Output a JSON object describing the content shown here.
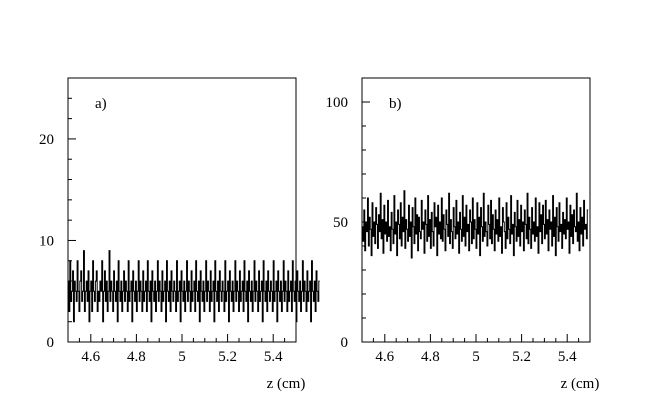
{
  "chart_data": [
    {
      "type": "line",
      "step": true,
      "panel_label": "a)",
      "xlabel": "z (cm)",
      "ylabel": "",
      "xlim": [
        4.5,
        5.5
      ],
      "ylim": [
        0,
        26
      ],
      "xticks": [
        4.6,
        4.8,
        5,
        5.2,
        5.4
      ],
      "xtick_labels": [
        "4.6",
        "4.8",
        "5",
        "5.2",
        "5.4"
      ],
      "yticks": [
        0,
        10,
        20
      ],
      "ytick_labels": [
        "0",
        "10",
        "20"
      ],
      "grid": false,
      "series": [
        {
          "x_start": 4.5,
          "x_step": 0.004,
          "values": [
            6,
            3,
            8,
            4,
            5,
            7,
            2,
            6,
            5,
            4,
            8,
            5,
            3,
            6,
            7,
            4,
            5,
            9,
            3,
            5,
            6,
            4,
            7,
            2,
            5,
            6,
            3,
            8,
            5,
            4,
            6,
            7,
            3,
            5,
            4,
            6,
            5,
            8,
            2,
            5,
            7,
            4,
            6,
            3,
            5,
            9,
            4,
            6,
            5,
            3,
            7,
            5,
            4,
            6,
            2,
            8,
            5,
            4,
            6,
            3,
            5,
            7,
            4,
            6,
            5,
            3,
            8,
            4,
            5,
            6,
            2,
            7,
            5,
            4,
            6,
            3,
            5,
            8,
            4,
            6,
            5,
            3,
            7,
            4,
            5,
            6,
            3,
            8,
            5,
            4,
            6,
            2,
            7,
            5,
            4,
            6,
            3,
            5,
            8,
            4,
            6,
            5,
            3,
            7,
            4,
            5,
            6,
            2,
            8,
            5,
            4,
            6,
            3,
            7,
            5,
            4,
            6,
            5,
            3,
            8,
            4,
            5,
            6,
            2,
            7,
            5,
            4,
            6,
            3,
            5,
            8,
            4,
            6,
            5,
            3,
            7,
            4,
            5,
            6,
            3,
            8,
            5,
            4,
            6,
            2,
            7,
            5,
            4,
            6,
            3,
            5,
            8,
            4,
            6,
            5,
            3,
            7,
            4,
            5,
            6,
            2,
            8,
            5,
            4,
            6,
            3,
            7,
            5,
            4,
            6,
            5,
            3,
            8,
            4,
            5,
            6,
            2,
            7,
            5,
            4,
            6,
            3,
            5,
            8,
            4,
            6,
            5,
            3,
            7,
            4,
            5,
            6,
            3,
            8,
            5,
            4,
            6,
            2,
            7,
            5,
            4,
            6,
            3,
            5,
            8,
            4,
            6,
            5,
            3,
            7,
            4,
            5,
            6,
            2,
            8,
            5,
            4,
            6,
            3,
            7,
            5,
            4,
            6,
            5,
            3,
            8,
            4,
            5,
            6,
            2,
            7,
            5,
            4,
            6,
            3,
            5,
            8,
            4,
            6,
            5,
            3,
            7,
            4,
            5,
            6,
            3,
            8,
            5,
            4,
            6,
            2,
            7,
            5,
            4,
            6,
            3,
            5,
            8,
            4,
            6,
            5,
            3,
            7,
            4,
            5,
            6,
            2,
            8,
            5,
            4,
            6,
            3,
            7,
            5,
            4,
            6
          ]
        }
      ]
    },
    {
      "type": "line",
      "step": true,
      "panel_label": "b)",
      "xlabel": "z (cm)",
      "ylabel": "",
      "xlim": [
        4.5,
        5.5
      ],
      "ylim": [
        0,
        110
      ],
      "xticks": [
        4.6,
        4.8,
        5,
        5.2,
        5.4
      ],
      "xtick_labels": [
        "4.6",
        "4.8",
        "5",
        "5.2",
        "5.4"
      ],
      "yticks": [
        0,
        50,
        100
      ],
      "ytick_labels": [
        "0",
        "50",
        "100"
      ],
      "grid": false,
      "series": [
        {
          "x_start": 4.5,
          "x_step": 0.004,
          "values": [
            48,
            42,
            55,
            38,
            50,
            46,
            60,
            40,
            52,
            47,
            36,
            58,
            44,
            50,
            41,
            56,
            49,
            39,
            53,
            46,
            62,
            43,
            51,
            37,
            57,
            45,
            50,
            42,
            59,
            44,
            48,
            38,
            54,
            47,
            41,
            61,
            45,
            50,
            36,
            55,
            49,
            43,
            58,
            40,
            52,
            46,
            63,
            39,
            51,
            47,
            42,
            57,
            44,
            50,
            35,
            56,
            48,
            41,
            60,
            45,
            53,
            38,
            52,
            46,
            43,
            59,
            47,
            50,
            37,
            55,
            49,
            42,
            61,
            44,
            51,
            39,
            54,
            46,
            40,
            58,
            48,
            52,
            36,
            57,
            45,
            50,
            43,
            60,
            42,
            53,
            47,
            38,
            55,
            49,
            44,
            62,
            41,
            51,
            46,
            39,
            56,
            48,
            43,
            59,
            45,
            50,
            37,
            54,
            47,
            42,
            61,
            44,
            52,
            40,
            57,
            46,
            49,
            38,
            55,
            50,
            41,
            60,
            43,
            51,
            47,
            39,
            58,
            45,
            52,
            36,
            56,
            48,
            42,
            62,
            44,
            50,
            46,
            40,
            57,
            49,
            43,
            59,
            41,
            53,
            47,
            38,
            55,
            45,
            51,
            42,
            60,
            44,
            48,
            37,
            56,
            50,
            46,
            39,
            58,
            43,
            52,
            47,
            41,
            61,
            45,
            49,
            36,
            54,
            48,
            42,
            59,
            44,
            51,
            40,
            57,
            46,
            50,
            38,
            55,
            49,
            43,
            62,
            41,
            52,
            47,
            39,
            56,
            45,
            50,
            42,
            60,
            44,
            48,
            37,
            58,
            46,
            53,
            41,
            57,
            49,
            43,
            59,
            45,
            51,
            38,
            55,
            47,
            50,
            40,
            61,
            44,
            52,
            36,
            56,
            48,
            42,
            58,
            46,
            49,
            39,
            54,
            45,
            51,
            43,
            60,
            47,
            50,
            37,
            57,
            44,
            53,
            41,
            55,
            48,
            46,
            62,
            42,
            50,
            38,
            56,
            45,
            52,
            40,
            59,
            47,
            49,
            43,
            55
          ]
        }
      ]
    }
  ]
}
